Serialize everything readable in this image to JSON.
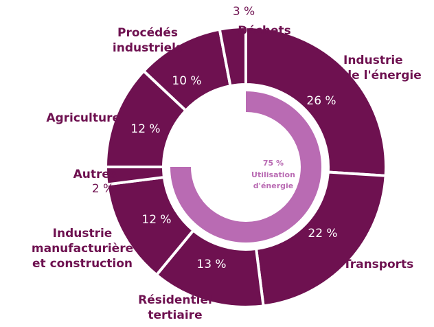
{
  "chart_data": {
    "type": "donut",
    "categories": [
      [
        "Industrie",
        "de l'énergie"
      ],
      [
        "Transports"
      ],
      [
        "Résidentiel",
        "tertiaire"
      ],
      [
        "Industrie",
        "manufacturière",
        "et construction"
      ],
      [
        "Autres"
      ],
      [
        "Agriculture"
      ],
      [
        "Procédés",
        "industriels"
      ],
      [
        "Déchets"
      ]
    ],
    "values": [
      26,
      22,
      13,
      12,
      2,
      12,
      10,
      3
    ],
    "value_labels": [
      "26 %",
      "22 %",
      "13 %",
      "12 %",
      "2 %",
      "12 %",
      "10 %",
      "3 %"
    ],
    "color": "#6e1150",
    "inner": {
      "value": 75,
      "value_label": "75 %",
      "label": [
        "Utilisation",
        "d'énergie"
      ],
      "color": "#b96bb3"
    }
  }
}
